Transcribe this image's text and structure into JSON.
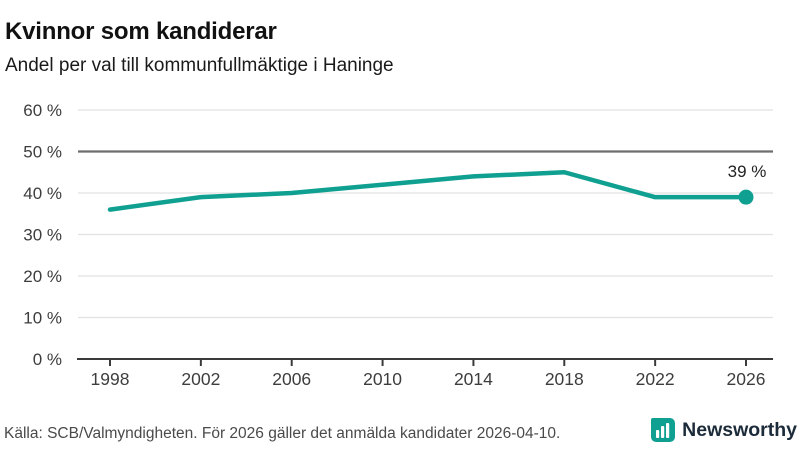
{
  "header": {
    "title": "Kvinnor som kandiderar",
    "subtitle": "Andel per val till kommunfullmäktige i Haninge"
  },
  "chart_data": {
    "type": "line",
    "title": "Kvinnor som kandiderar",
    "subtitle": "Andel per val till kommunfullmäktige i Haninge",
    "categories": [
      1998,
      2002,
      2006,
      2010,
      2014,
      2018,
      2022,
      2026
    ],
    "x_tick_labels": [
      "1998",
      "2002",
      "2006",
      "2010",
      "2014",
      "2018",
      "2022",
      "2026"
    ],
    "values": [
      36,
      39,
      40,
      42,
      44,
      45,
      39,
      39
    ],
    "yticks": [
      0,
      10,
      20,
      30,
      40,
      50,
      60
    ],
    "y_tick_labels": [
      "0 %",
      "10 %",
      "20 %",
      "30 %",
      "40 %",
      "50 %",
      "60 %"
    ],
    "ylim": [
      0,
      60
    ],
    "grid": true,
    "reference_line": 50,
    "end_label": "39 %",
    "end_label_color": "#222222",
    "line_color": "#10a091",
    "grid_color": "#e2e2e2",
    "reference_line_color": "#6e6e6e",
    "axis_color": "#3b3b3b",
    "tick_label_color": "#3d3d3d",
    "legend": "none"
  },
  "footer": {
    "source": "Källa: SCB/Valmyndigheten. För 2026 gäller det anmälda kandidater 2026-04-10.",
    "brand": "Newsworthy",
    "brand_color": "#10a091"
  }
}
